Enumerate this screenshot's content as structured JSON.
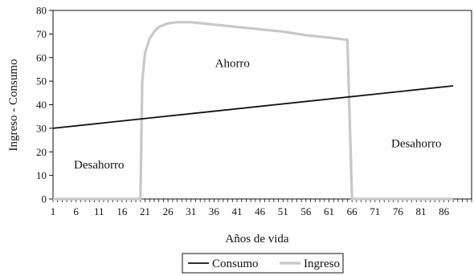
{
  "chart_data": {
    "type": "line",
    "title": "",
    "xlabel": "Años de vida",
    "ylabel": "Ingreso - Consumo",
    "x_tick_labels": [
      "1",
      "6",
      "11",
      "16",
      "21",
      "26",
      "31",
      "36",
      "41",
      "46",
      "51",
      "56",
      "61",
      "66",
      "71",
      "76",
      "81",
      "86"
    ],
    "xlim": [
      1,
      92
    ],
    "ylim": [
      0,
      80
    ],
    "y_ticks": [
      0,
      10,
      20,
      30,
      40,
      50,
      60,
      70,
      80
    ],
    "grid": false,
    "legend_position": "bottom",
    "series": [
      {
        "name": "Consumo",
        "color": "#111111",
        "x": [
          1,
          88
        ],
        "y": [
          30,
          48
        ]
      },
      {
        "name": "Ingreso",
        "color": "#c8c8c8",
        "x": [
          1,
          20,
          20.4,
          21,
          22,
          23,
          24,
          26,
          28,
          31,
          36,
          41,
          46,
          51,
          56,
          61,
          65,
          66,
          67,
          88
        ],
        "y": [
          0,
          0,
          50,
          62,
          68,
          71,
          73,
          74.5,
          75,
          75,
          74,
          73,
          72,
          71,
          69.5,
          68.5,
          67.5,
          0,
          0,
          0
        ]
      }
    ],
    "annotations": [
      {
        "text": "Ahorro",
        "x": 40,
        "y": 56
      },
      {
        "text": "Desahorro",
        "x": 11,
        "y": 13
      },
      {
        "text": "Desahorro",
        "x": 80,
        "y": 22
      }
    ]
  }
}
